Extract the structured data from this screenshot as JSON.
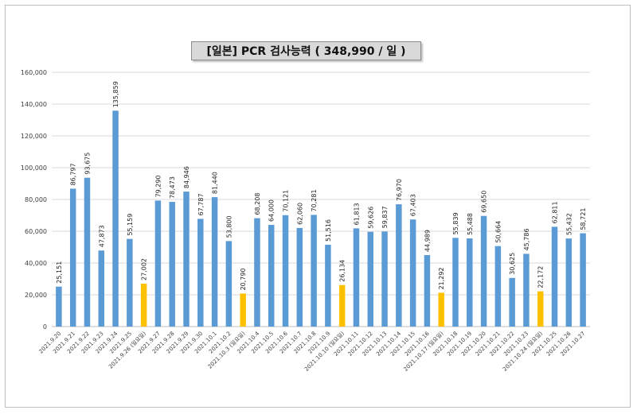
{
  "chart_data": {
    "type": "bar",
    "title": "[일본] PCR 검사능력 ( 348,990 / 일 )",
    "xlabel": "",
    "ylabel": "",
    "ylim": [
      0,
      160000
    ],
    "yticks": [
      "0",
      "20,000",
      "40,000",
      "60,000",
      "80,000",
      "100,000",
      "120,000",
      "140,000",
      "160,000"
    ],
    "grid": true,
    "legend": "none",
    "colors": {
      "weekday": "#5b9bd5",
      "sunday": "#ffc000",
      "grid": "#d9d9d9"
    },
    "categories": [
      "2021.9.20",
      "2021.9.21",
      "2021.9.22",
      "2021.9.23",
      "2021.9.24",
      "2021.9.25",
      "2021.9.26 (일요일)",
      "2021.9.27",
      "2021.9.28",
      "2021.9.29",
      "2021.9.30",
      "2021.10.1",
      "2021.10.2",
      "2021.10.3 (일요일)",
      "2021.10.4",
      "2021.10.5",
      "2021.10.6",
      "2021.10.7",
      "2021.10.8",
      "2021.10.9",
      "2021.10.10 (일요일)",
      "2021.10.11",
      "2021.10.12",
      "2021.10.13",
      "2021.10.14",
      "2021.10.15",
      "2021.10.16",
      "2021.10.17 (일요일)",
      "2021.10.18",
      "2021.10.19",
      "2021.10.20",
      "2021.10.21",
      "2021.10.22",
      "2021.10.23",
      "2021.10.24 (일요일)",
      "2021.10.25",
      "2021.10.26",
      "2021.10.27"
    ],
    "values": [
      25151,
      86797,
      93675,
      47873,
      135859,
      55159,
      27002,
      79290,
      78473,
      84946,
      67787,
      81440,
      53800,
      20790,
      68208,
      64000,
      70121,
      62060,
      70281,
      51516,
      26134,
      61813,
      59626,
      59837,
      76970,
      67403,
      44989,
      21292,
      55839,
      55488,
      69650,
      50664,
      30625,
      45786,
      22172,
      62811,
      55432,
      58721
    ],
    "value_labels": [
      "25,151",
      "86,797",
      "93,675",
      "47,873",
      "135,859",
      "55,159",
      "27,002",
      "79,290",
      "78,473",
      "84,946",
      "67,787",
      "81,440",
      "53,800",
      "20,790",
      "68,208",
      "64,000",
      "70,121",
      "62,060",
      "70,281",
      "51,516",
      "26,134",
      "61,813",
      "59,626",
      "59,837",
      "76,970",
      "67,403",
      "44,989",
      "21,292",
      "55,839",
      "55,488",
      "69,650",
      "50,664",
      "30,625",
      "45,786",
      "22,172",
      "62,811",
      "55,432",
      "58,721"
    ],
    "highlight_indices": [
      6,
      13,
      20,
      27,
      34
    ]
  }
}
